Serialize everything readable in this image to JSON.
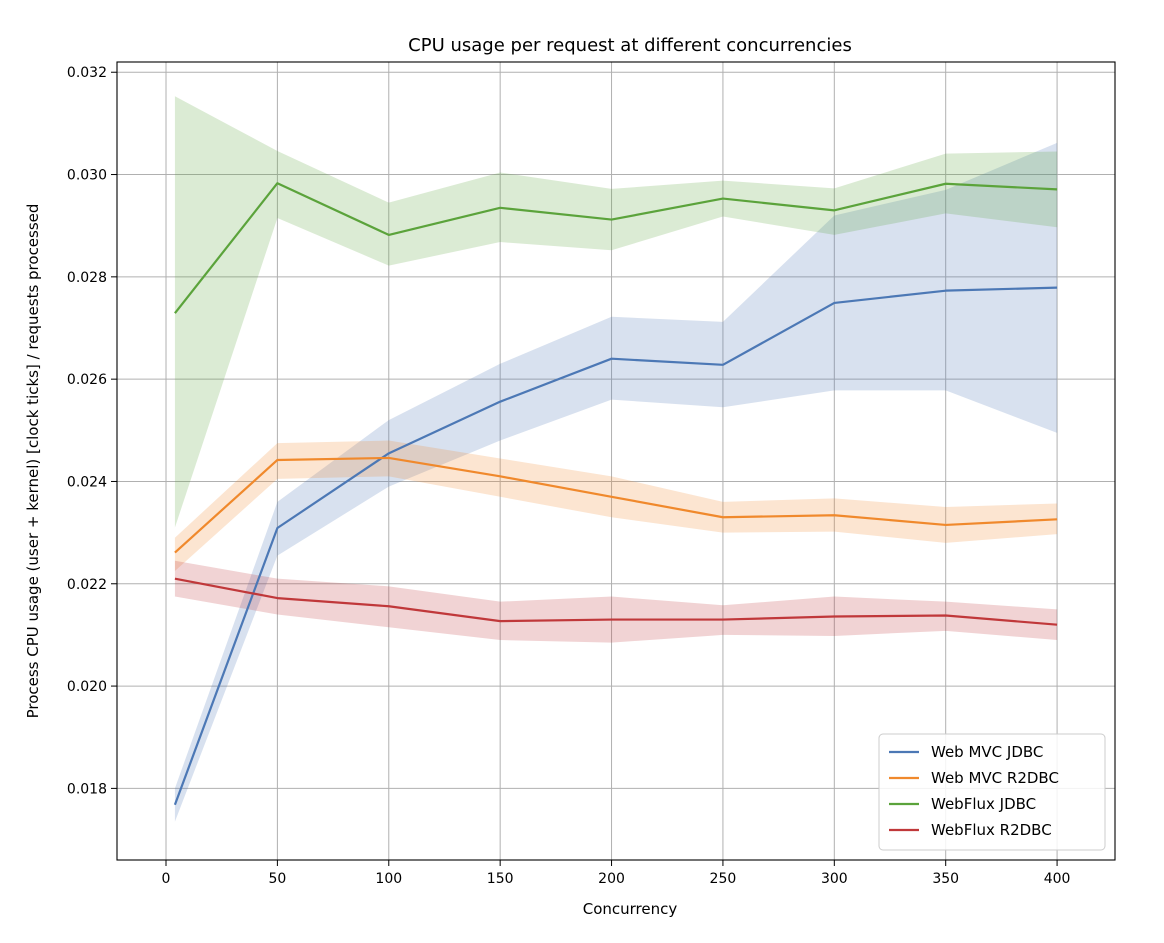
{
  "chart_data": {
    "type": "line",
    "title": "CPU usage per request at different concurrencies",
    "xlabel": "Concurrency",
    "ylabel": "Process CPU usage (user + kernel) [clock ticks] / requests processed",
    "xlim": [
      -22,
      426
    ],
    "ylim": [
      0.0166,
      0.0322
    ],
    "xticks": [
      0,
      50,
      100,
      150,
      200,
      250,
      300,
      350,
      400
    ],
    "xtick_labels": [
      "0",
      "50",
      "100",
      "150",
      "200",
      "250",
      "300",
      "350",
      "400"
    ],
    "yticks": [
      0.018,
      0.02,
      0.022,
      0.024,
      0.026,
      0.028,
      0.03,
      0.032
    ],
    "ytick_labels": [
      "0.018",
      "0.020",
      "0.022",
      "0.024",
      "0.026",
      "0.028",
      "0.030",
      "0.032"
    ],
    "grid": true,
    "legend_position": "bottom-right",
    "x": [
      4,
      50,
      100,
      150,
      200,
      250,
      300,
      350,
      400
    ],
    "series": [
      {
        "name": "Web MVC JDBC",
        "color": "#4c78b5",
        "values": [
          0.01768,
          0.02309,
          0.02455,
          0.02556,
          0.0264,
          0.02628,
          0.02749,
          0.02773,
          0.02779
        ],
        "lower": [
          0.01735,
          0.02255,
          0.0239,
          0.0248,
          0.0256,
          0.02545,
          0.02578,
          0.02578,
          0.02495
        ],
        "upper": [
          0.018,
          0.0236,
          0.0252,
          0.0263,
          0.02722,
          0.02712,
          0.0292,
          0.0297,
          0.03062
        ]
      },
      {
        "name": "Web MVC R2DBC",
        "color": "#f0892c",
        "values": [
          0.02261,
          0.02442,
          0.02446,
          0.0241,
          0.0237,
          0.0233,
          0.02334,
          0.02315,
          0.02326
        ],
        "lower": [
          0.02225,
          0.02405,
          0.0241,
          0.0237,
          0.0233,
          0.023,
          0.02302,
          0.0228,
          0.02297
        ],
        "upper": [
          0.0229,
          0.02475,
          0.0248,
          0.02445,
          0.0241,
          0.0236,
          0.02367,
          0.0235,
          0.02357
        ]
      },
      {
        "name": "WebFlux JDBC",
        "color": "#5ba33b",
        "values": [
          0.02729,
          0.02983,
          0.02882,
          0.02935,
          0.02912,
          0.02953,
          0.0293,
          0.02982,
          0.02971
        ],
        "lower": [
          0.0231,
          0.02915,
          0.02822,
          0.02868,
          0.02852,
          0.02918,
          0.02882,
          0.02924,
          0.02897
        ],
        "upper": [
          0.03153,
          0.03046,
          0.02945,
          0.03004,
          0.02972,
          0.02988,
          0.02973,
          0.03041,
          0.03045
        ]
      },
      {
        "name": "WebFlux R2DBC",
        "color": "#c0383a",
        "values": [
          0.0221,
          0.02172,
          0.02156,
          0.02127,
          0.0213,
          0.0213,
          0.02136,
          0.02138,
          0.0212
        ],
        "lower": [
          0.02175,
          0.0214,
          0.02115,
          0.0209,
          0.02085,
          0.021,
          0.02098,
          0.02108,
          0.0209
        ],
        "upper": [
          0.02245,
          0.0221,
          0.02195,
          0.02165,
          0.02175,
          0.02158,
          0.02175,
          0.02165,
          0.0215
        ]
      }
    ]
  }
}
